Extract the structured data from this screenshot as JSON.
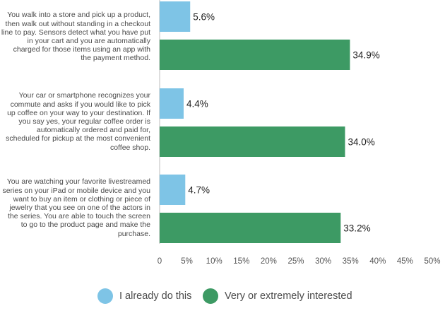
{
  "chart_data": {
    "type": "bar",
    "orientation": "horizontal",
    "categories": [
      "You walk into a store and pick up a product, then walk out without standing in a checkout line to pay. Sensors detect what you have put in your cart and you are automatically charged for those items using an app with the payment method.",
      "Your car or smartphone recognizes your commute and asks if you would like to pick up coffee on your way to your destination. If you say yes, your regular coffee order is automatically ordered and paid for, scheduled for pickup at the most convenient coffee shop.",
      "You are watching your favorite livestreamed series on your iPad or mobile device and you want to buy an item or clothing or piece of jewelry that you see on one of the actors in the series. You are able to touch the screen to go to the product page and make the purchase."
    ],
    "category_lines": [
      [
        "You walk into a store and pick up a product,",
        "then walk out without standing in a checkout",
        "line to pay. Sensors detect what you have put",
        "in your cart and you are automatically",
        "charged for those items using an app with",
        "the payment method."
      ],
      [
        "Your car or smartphone recognizes your",
        "commute and asks if you would like to pick",
        "up coffee on your way to your destination. If",
        "you say yes, your regular coffee order is",
        "automatically ordered and paid for,",
        "scheduled for pickup at the most convenient",
        "coffee shop."
      ],
      [
        "You are watching your favorite livestreamed",
        "series on your iPad or mobile device and you",
        "want to buy an item or clothing or piece of",
        "jewelry that you see on one of the actors in",
        "the series. You are able to touch the screen",
        "to go to the product page and make the",
        "purchase."
      ]
    ],
    "series": [
      {
        "name": "I already do this",
        "color": "#7ec4e6",
        "values": [
          5.6,
          4.4,
          4.7
        ],
        "labels": [
          "5.6%",
          "4.4%",
          "4.7%"
        ]
      },
      {
        "name": "Very or extremely interested",
        "color": "#3d9a64",
        "values": [
          34.9,
          34.0,
          33.2
        ],
        "labels": [
          "34.9%",
          "34.0%",
          "33.2%"
        ]
      }
    ],
    "xlim": [
      0,
      50
    ],
    "xticks": [
      0,
      5,
      10,
      15,
      20,
      25,
      30,
      35,
      40,
      45,
      50
    ],
    "xtick_labels": [
      "0",
      "5%",
      "10%",
      "15%",
      "20%",
      "25%",
      "30%",
      "35%",
      "40%",
      "45%",
      "50%"
    ],
    "legend_position": "bottom-center",
    "grid": false
  }
}
